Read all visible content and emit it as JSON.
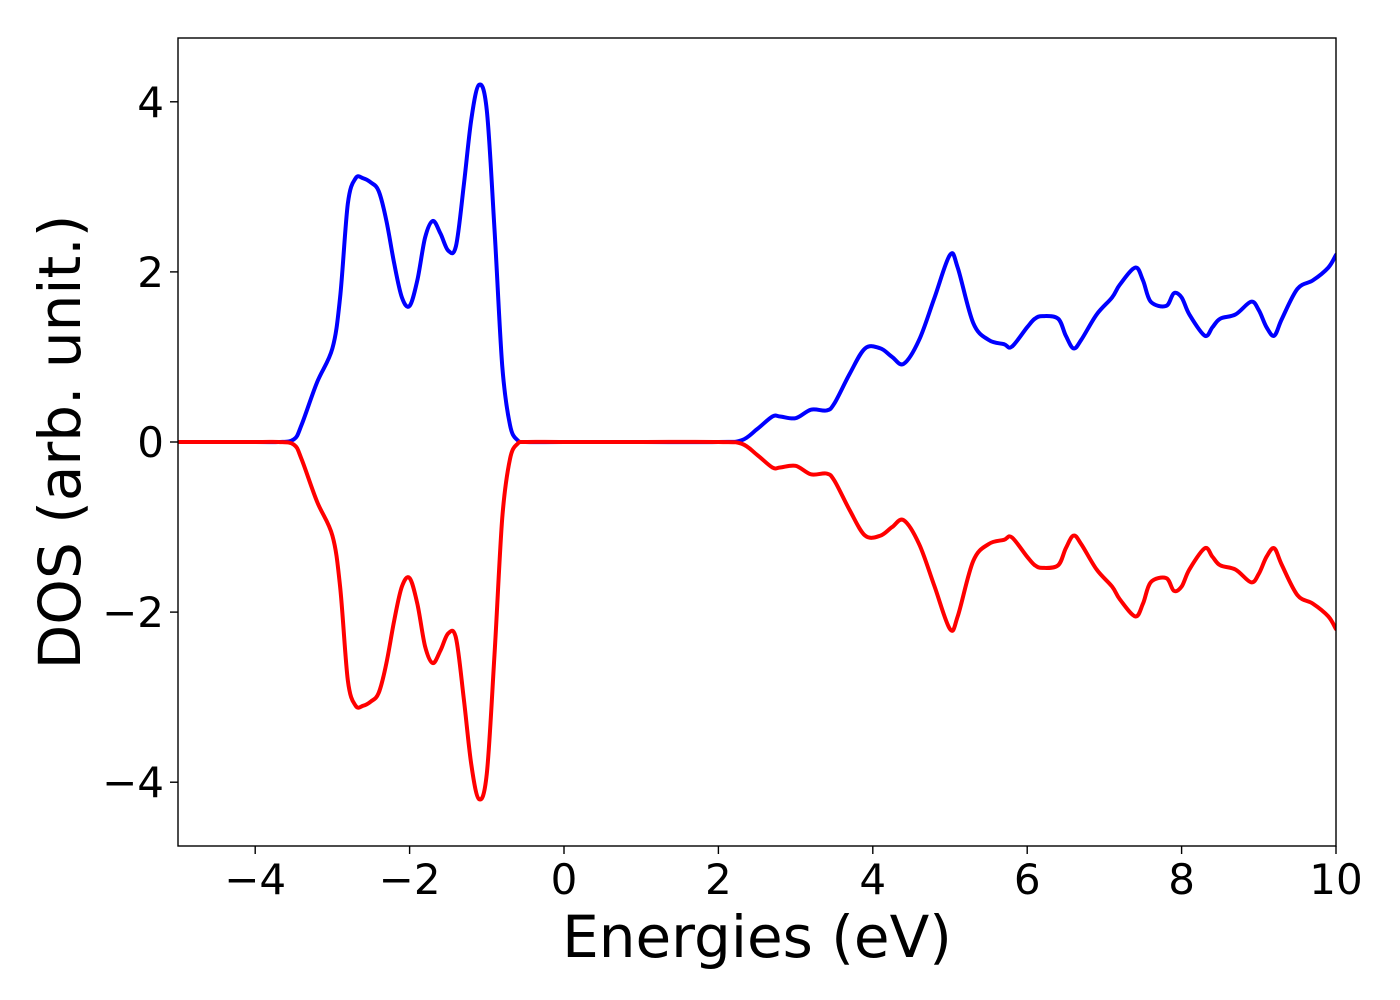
{
  "chart_data": {
    "type": "line",
    "title": "",
    "xlabel": "Energies (eV)",
    "ylabel": "DOS (arb. unit.)",
    "xlim": [
      -5,
      10
    ],
    "ylim": [
      -4.75,
      4.75
    ],
    "grid": false,
    "legend": "none",
    "x_ticks": [
      -4,
      -2,
      0,
      2,
      4,
      6,
      8,
      10
    ],
    "x_tick_labels": [
      "−4",
      "−2",
      "0",
      "2",
      "4",
      "6",
      "8",
      "10"
    ],
    "y_ticks": [
      -4,
      -2,
      0,
      2,
      4
    ],
    "y_tick_labels": [
      "−4",
      "−2",
      "0",
      "2",
      "4"
    ],
    "series": [
      {
        "color": "#0000ff",
        "x": [
          -5.0,
          -4.0,
          -3.7,
          -3.5,
          -3.4,
          -3.2,
          -3.0,
          -2.9,
          -2.8,
          -2.7,
          -2.6,
          -2.5,
          -2.4,
          -2.3,
          -2.2,
          -2.1,
          -2.0,
          -1.9,
          -1.8,
          -1.7,
          -1.6,
          -1.5,
          -1.4,
          -1.3,
          -1.2,
          -1.1,
          -1.0,
          -0.9,
          -0.8,
          -0.7,
          -0.6,
          -0.5,
          0.0,
          1.0,
          2.0,
          2.3,
          2.5,
          2.7,
          2.8,
          3.0,
          3.2,
          3.4,
          3.5,
          3.7,
          3.9,
          4.1,
          4.25,
          4.4,
          4.6,
          4.8,
          5.0,
          5.1,
          5.3,
          5.5,
          5.7,
          5.8,
          6.0,
          6.1,
          6.2,
          6.4,
          6.5,
          6.6,
          6.7,
          6.9,
          7.1,
          7.2,
          7.4,
          7.5,
          7.6,
          7.8,
          7.9,
          8.0,
          8.1,
          8.3,
          8.4,
          8.5,
          8.7,
          8.9,
          9.0,
          9.1,
          9.2,
          9.3,
          9.5,
          9.7,
          9.9,
          10.0
        ],
        "y": [
          0.0,
          0.0,
          0.0,
          0.03,
          0.2,
          0.7,
          1.1,
          1.7,
          2.8,
          3.1,
          3.1,
          3.05,
          2.95,
          2.6,
          2.1,
          1.7,
          1.6,
          1.9,
          2.4,
          2.6,
          2.45,
          2.25,
          2.3,
          3.0,
          3.8,
          4.2,
          3.9,
          2.5,
          0.9,
          0.2,
          0.02,
          0.0,
          0.0,
          0.0,
          0.0,
          0.02,
          0.15,
          0.3,
          0.3,
          0.28,
          0.38,
          0.37,
          0.45,
          0.8,
          1.1,
          1.1,
          1.0,
          0.92,
          1.2,
          1.7,
          2.2,
          2.05,
          1.4,
          1.2,
          1.15,
          1.12,
          1.35,
          1.45,
          1.48,
          1.45,
          1.25,
          1.1,
          1.2,
          1.5,
          1.7,
          1.85,
          2.05,
          1.9,
          1.65,
          1.6,
          1.75,
          1.7,
          1.5,
          1.25,
          1.35,
          1.45,
          1.5,
          1.65,
          1.55,
          1.35,
          1.25,
          1.45,
          1.8,
          1.9,
          2.05,
          2.2
        ]
      },
      {
        "color": "#ff0000",
        "x": [
          -5.0,
          -4.0,
          -3.7,
          -3.5,
          -3.4,
          -3.2,
          -3.0,
          -2.9,
          -2.8,
          -2.7,
          -2.6,
          -2.5,
          -2.4,
          -2.3,
          -2.2,
          -2.1,
          -2.0,
          -1.9,
          -1.8,
          -1.7,
          -1.6,
          -1.5,
          -1.4,
          -1.3,
          -1.2,
          -1.1,
          -1.0,
          -0.9,
          -0.8,
          -0.7,
          -0.6,
          -0.5,
          0.0,
          1.0,
          2.0,
          2.3,
          2.5,
          2.7,
          2.8,
          3.0,
          3.2,
          3.4,
          3.5,
          3.7,
          3.9,
          4.1,
          4.25,
          4.4,
          4.6,
          4.8,
          5.0,
          5.1,
          5.3,
          5.5,
          5.7,
          5.8,
          6.0,
          6.1,
          6.2,
          6.4,
          6.5,
          6.6,
          6.7,
          6.9,
          7.1,
          7.2,
          7.4,
          7.5,
          7.6,
          7.8,
          7.9,
          8.0,
          8.1,
          8.3,
          8.4,
          8.5,
          8.7,
          8.9,
          9.0,
          9.1,
          9.2,
          9.3,
          9.5,
          9.7,
          9.9,
          10.0
        ],
        "y": [
          0.0,
          0.0,
          0.0,
          -0.03,
          -0.2,
          -0.7,
          -1.1,
          -1.7,
          -2.8,
          -3.1,
          -3.1,
          -3.05,
          -2.95,
          -2.6,
          -2.1,
          -1.7,
          -1.6,
          -1.9,
          -2.4,
          -2.6,
          -2.45,
          -2.25,
          -2.3,
          -3.0,
          -3.8,
          -4.2,
          -3.9,
          -2.5,
          -0.9,
          -0.2,
          -0.02,
          0.0,
          0.0,
          0.0,
          0.0,
          -0.02,
          -0.15,
          -0.3,
          -0.3,
          -0.28,
          -0.38,
          -0.37,
          -0.45,
          -0.8,
          -1.1,
          -1.1,
          -1.0,
          -0.92,
          -1.2,
          -1.7,
          -2.2,
          -2.05,
          -1.4,
          -1.2,
          -1.15,
          -1.12,
          -1.35,
          -1.45,
          -1.48,
          -1.45,
          -1.25,
          -1.1,
          -1.2,
          -1.5,
          -1.7,
          -1.85,
          -2.05,
          -1.9,
          -1.65,
          -1.6,
          -1.75,
          -1.7,
          -1.5,
          -1.25,
          -1.35,
          -1.45,
          -1.5,
          -1.65,
          -1.55,
          -1.35,
          -1.25,
          -1.45,
          -1.8,
          -1.9,
          -2.05,
          -2.2
        ]
      }
    ]
  }
}
